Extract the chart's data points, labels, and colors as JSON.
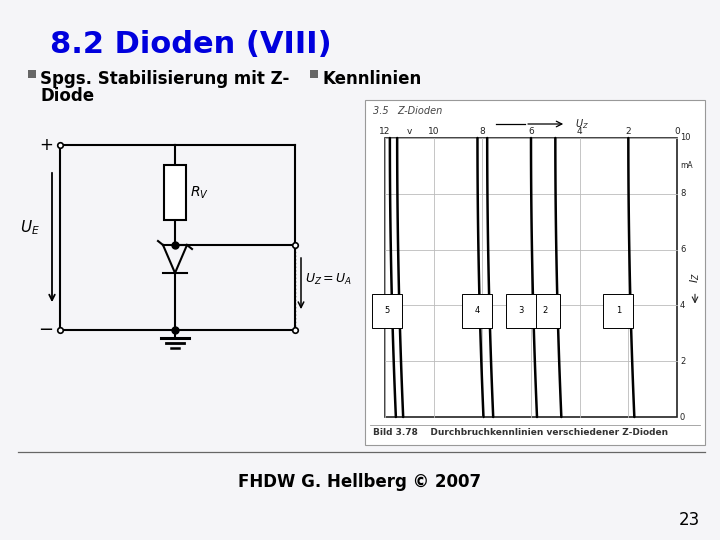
{
  "title": "8.2 Dioden (VIII)",
  "title_color": "#0000DD",
  "title_fontsize": 22,
  "bullet1_line1": "Spgs. Stabilisierung mit Z-",
  "bullet1_line2": "Diode",
  "bullet2": "Kennlinien",
  "bullet_fontsize": 12,
  "bullet_color": "#000000",
  "bullet_square_color": "#666666",
  "footer_text": "FHDW G. Hellberg © 2007",
  "footer_fontsize": 12,
  "page_number": "23",
  "background_color": "#e8e8ee",
  "slide_bg": "#f5f5f8"
}
